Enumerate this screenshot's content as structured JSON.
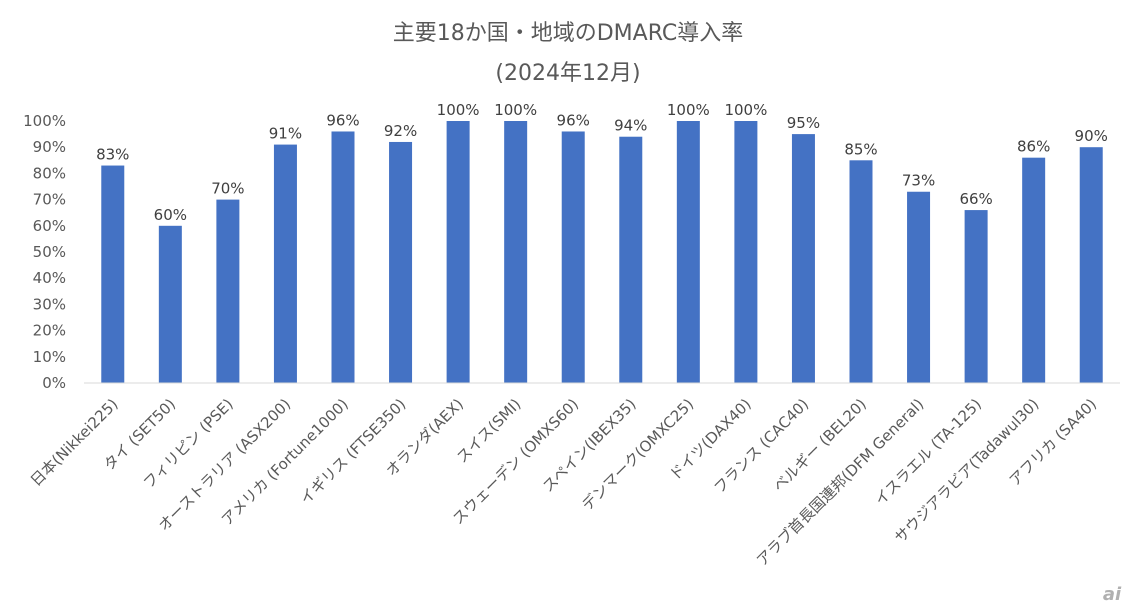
{
  "chart_data": {
    "type": "bar",
    "title": "主要18か国・地域のDMARC導入率",
    "subtitle": "(2024年12月)",
    "categories": [
      "日本(Nikkei225)",
      "タイ (SET50)",
      "フィリピン (PSE)",
      "オーストラリア (ASX200)",
      "アメリカ (Fortune1000)",
      "イギリス (FTSE350)",
      "オランダ(AEX)",
      "スイス(SMI)",
      "スウェーデン (OMXS60)",
      "スペイン(IBEX35)",
      "デンマーク(OMXC25)",
      "ドイツ(DAX40)",
      "フランス (CAC40)",
      "ベルギー (BEL20)",
      "アラブ首長国連邦(DFM General)",
      "イスラエル (TA-125)",
      "サウジアラビア(Tadawul30)",
      "アフリカ (SA40)"
    ],
    "values": [
      83,
      60,
      70,
      91,
      96,
      92,
      100,
      100,
      96,
      94,
      100,
      100,
      95,
      85,
      73,
      66,
      86,
      90
    ],
    "data_labels": [
      "83%",
      "60%",
      "70%",
      "91%",
      "96%",
      "92%",
      "100%",
      "100%",
      "96%",
      "94%",
      "100%",
      "100%",
      "95%",
      "85%",
      "73%",
      "66%",
      "86%",
      "90%"
    ],
    "y_ticks": [
      "0%",
      "10%",
      "20%",
      "30%",
      "40%",
      "50%",
      "60%",
      "70%",
      "80%",
      "90%",
      "100%"
    ],
    "ylim": [
      0,
      100
    ],
    "grid": false,
    "legend": "none",
    "bar_color": "#4472C4"
  },
  "watermark": "ai"
}
